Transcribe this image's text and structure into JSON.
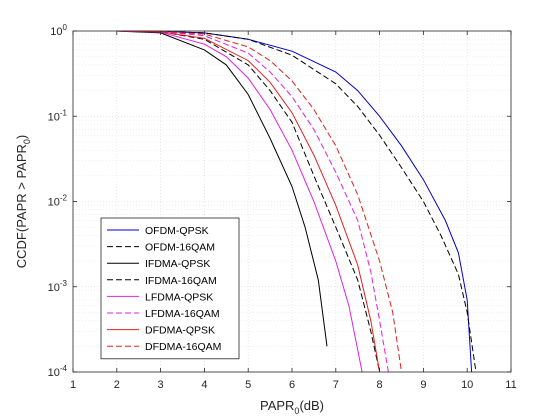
{
  "chart_data": {
    "type": "line",
    "xlabel_main": "PAPR",
    "xlabel_sub": "0",
    "xlabel_tail": "(dB)",
    "ylabel_a": "CCDF(PAPR > PAPR",
    "ylabel_sub": "0",
    "ylabel_b": ")",
    "xlim": [
      1,
      11
    ],
    "ylim": [
      0.0001,
      1
    ],
    "yscale": "log",
    "grid": true,
    "legend_position": "bottom-left",
    "x_ticks": [
      "1",
      "2",
      "3",
      "4",
      "5",
      "6",
      "7",
      "8",
      "9",
      "10",
      "11"
    ],
    "y_ticks": [
      {
        "base": "10",
        "exp": "0",
        "value": 1
      },
      {
        "base": "10",
        "exp": "-1",
        "value": 0.1
      },
      {
        "base": "10",
        "exp": "-2",
        "value": 0.01
      },
      {
        "base": "10",
        "exp": "-3",
        "value": 0.001
      },
      {
        "base": "10",
        "exp": "-4",
        "value": 0.0001
      }
    ],
    "series": [
      {
        "name": "OFDM-QPSK",
        "color": "#0000cc",
        "dash": "solid",
        "points": [
          [
            2,
            1
          ],
          [
            3,
            0.99
          ],
          [
            4,
            0.95
          ],
          [
            5,
            0.8
          ],
          [
            6,
            0.58
          ],
          [
            7,
            0.33
          ],
          [
            7.5,
            0.2
          ],
          [
            8,
            0.1
          ],
          [
            8.5,
            0.045
          ],
          [
            9,
            0.018
          ],
          [
            9.5,
            0.006
          ],
          [
            9.8,
            0.0025
          ],
          [
            10,
            0.0007
          ],
          [
            10.1,
            0.0001
          ]
        ]
      },
      {
        "name": "OFDM-16QAM",
        "color": "#000000",
        "dash": "dashed",
        "points": [
          [
            2,
            1
          ],
          [
            3,
            0.99
          ],
          [
            4,
            0.95
          ],
          [
            5,
            0.8
          ],
          [
            6,
            0.52
          ],
          [
            7,
            0.24
          ],
          [
            7.5,
            0.13
          ],
          [
            8,
            0.06
          ],
          [
            8.5,
            0.025
          ],
          [
            9,
            0.01
          ],
          [
            9.4,
            0.004
          ],
          [
            9.8,
            0.0014
          ],
          [
            10,
            0.0005
          ],
          [
            10.2,
            0.0001
          ]
        ]
      },
      {
        "name": "IFDMA-QPSK",
        "color": "#000000",
        "dash": "solid",
        "points": [
          [
            2,
            1
          ],
          [
            3,
            0.95
          ],
          [
            4,
            0.6
          ],
          [
            4.5,
            0.4
          ],
          [
            5,
            0.18
          ],
          [
            5.5,
            0.055
          ],
          [
            6,
            0.015
          ],
          [
            6.3,
            0.005
          ],
          [
            6.6,
            0.0012
          ],
          [
            6.8,
            0.0002
          ]
        ]
      },
      {
        "name": "IFDMA-16QAM",
        "color": "#000000",
        "dash": "dashed",
        "points": [
          [
            2,
            1
          ],
          [
            3,
            0.98
          ],
          [
            4,
            0.8
          ],
          [
            5,
            0.4
          ],
          [
            5.5,
            0.2
          ],
          [
            6,
            0.085
          ],
          [
            6.5,
            0.02
          ],
          [
            7,
            0.005
          ],
          [
            7.5,
            0.0012
          ],
          [
            7.8,
            0.0003
          ],
          [
            8,
            0.0001
          ]
        ]
      },
      {
        "name": "LFDMA-QPSK",
        "color": "#e020e0",
        "dash": "solid",
        "points": [
          [
            2,
            1
          ],
          [
            3,
            0.97
          ],
          [
            4,
            0.7
          ],
          [
            4.5,
            0.5
          ],
          [
            5,
            0.28
          ],
          [
            5.5,
            0.12
          ],
          [
            6,
            0.04
          ],
          [
            6.5,
            0.01
          ],
          [
            7,
            0.002
          ],
          [
            7.3,
            0.0006
          ],
          [
            7.6,
            0.0001
          ]
        ]
      },
      {
        "name": "LFDMA-16QAM",
        "color": "#e020e0",
        "dash": "dashed",
        "points": [
          [
            2,
            1
          ],
          [
            3,
            0.99
          ],
          [
            4,
            0.88
          ],
          [
            5,
            0.55
          ],
          [
            5.5,
            0.33
          ],
          [
            6,
            0.17
          ],
          [
            6.5,
            0.07
          ],
          [
            7,
            0.022
          ],
          [
            7.5,
            0.006
          ],
          [
            7.8,
            0.0015
          ],
          [
            8,
            0.0004
          ],
          [
            8.2,
            0.0001
          ]
        ]
      },
      {
        "name": "DFDMA-QPSK",
        "color": "#e02020",
        "dash": "solid",
        "points": [
          [
            2,
            1
          ],
          [
            3,
            0.98
          ],
          [
            4,
            0.82
          ],
          [
            5,
            0.45
          ],
          [
            5.5,
            0.25
          ],
          [
            6,
            0.11
          ],
          [
            6.5,
            0.035
          ],
          [
            7,
            0.009
          ],
          [
            7.5,
            0.0018
          ],
          [
            7.8,
            0.0004
          ],
          [
            8,
            0.0001
          ]
        ]
      },
      {
        "name": "DFDMA-16QAM",
        "color": "#e02020",
        "dash": "dashed",
        "points": [
          [
            2,
            1
          ],
          [
            3,
            0.99
          ],
          [
            4,
            0.92
          ],
          [
            5,
            0.65
          ],
          [
            5.5,
            0.45
          ],
          [
            6,
            0.26
          ],
          [
            6.5,
            0.12
          ],
          [
            7,
            0.045
          ],
          [
            7.5,
            0.012
          ],
          [
            8,
            0.002
          ],
          [
            8.3,
            0.0005
          ],
          [
            8.5,
            0.0001
          ]
        ]
      }
    ]
  }
}
